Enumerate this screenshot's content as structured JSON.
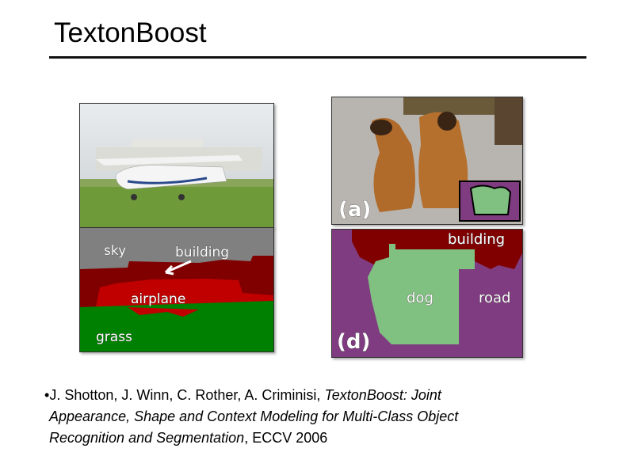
{
  "slide": {
    "title": "TextonBoost",
    "figures": {
      "airplane_labels": {
        "sky": "sky",
        "building": "building",
        "airplane": "airplane",
        "grass": "grass"
      },
      "dog_labels": {
        "panel_a": "(a)",
        "panel_d": "(d)",
        "building": "building",
        "dog": "dog",
        "road": "road"
      },
      "colors": {
        "sky": "#808080",
        "building": "#800000",
        "airplane": "#c00000",
        "grass": "#008000",
        "dog": "#80c080",
        "road": "#803c80"
      }
    },
    "citation": {
      "bullet": "•",
      "authors": "J. Shotton, J. Winn, C. Rother, A. Criminisi, ",
      "title_part1": "TextonBoost: Joint",
      "title_part2": "Appearance, Shape and Context Modeling for Multi-Class Object",
      "title_part3": "Recognition and Segmentation",
      "venue": ", ECCV 2006"
    }
  }
}
